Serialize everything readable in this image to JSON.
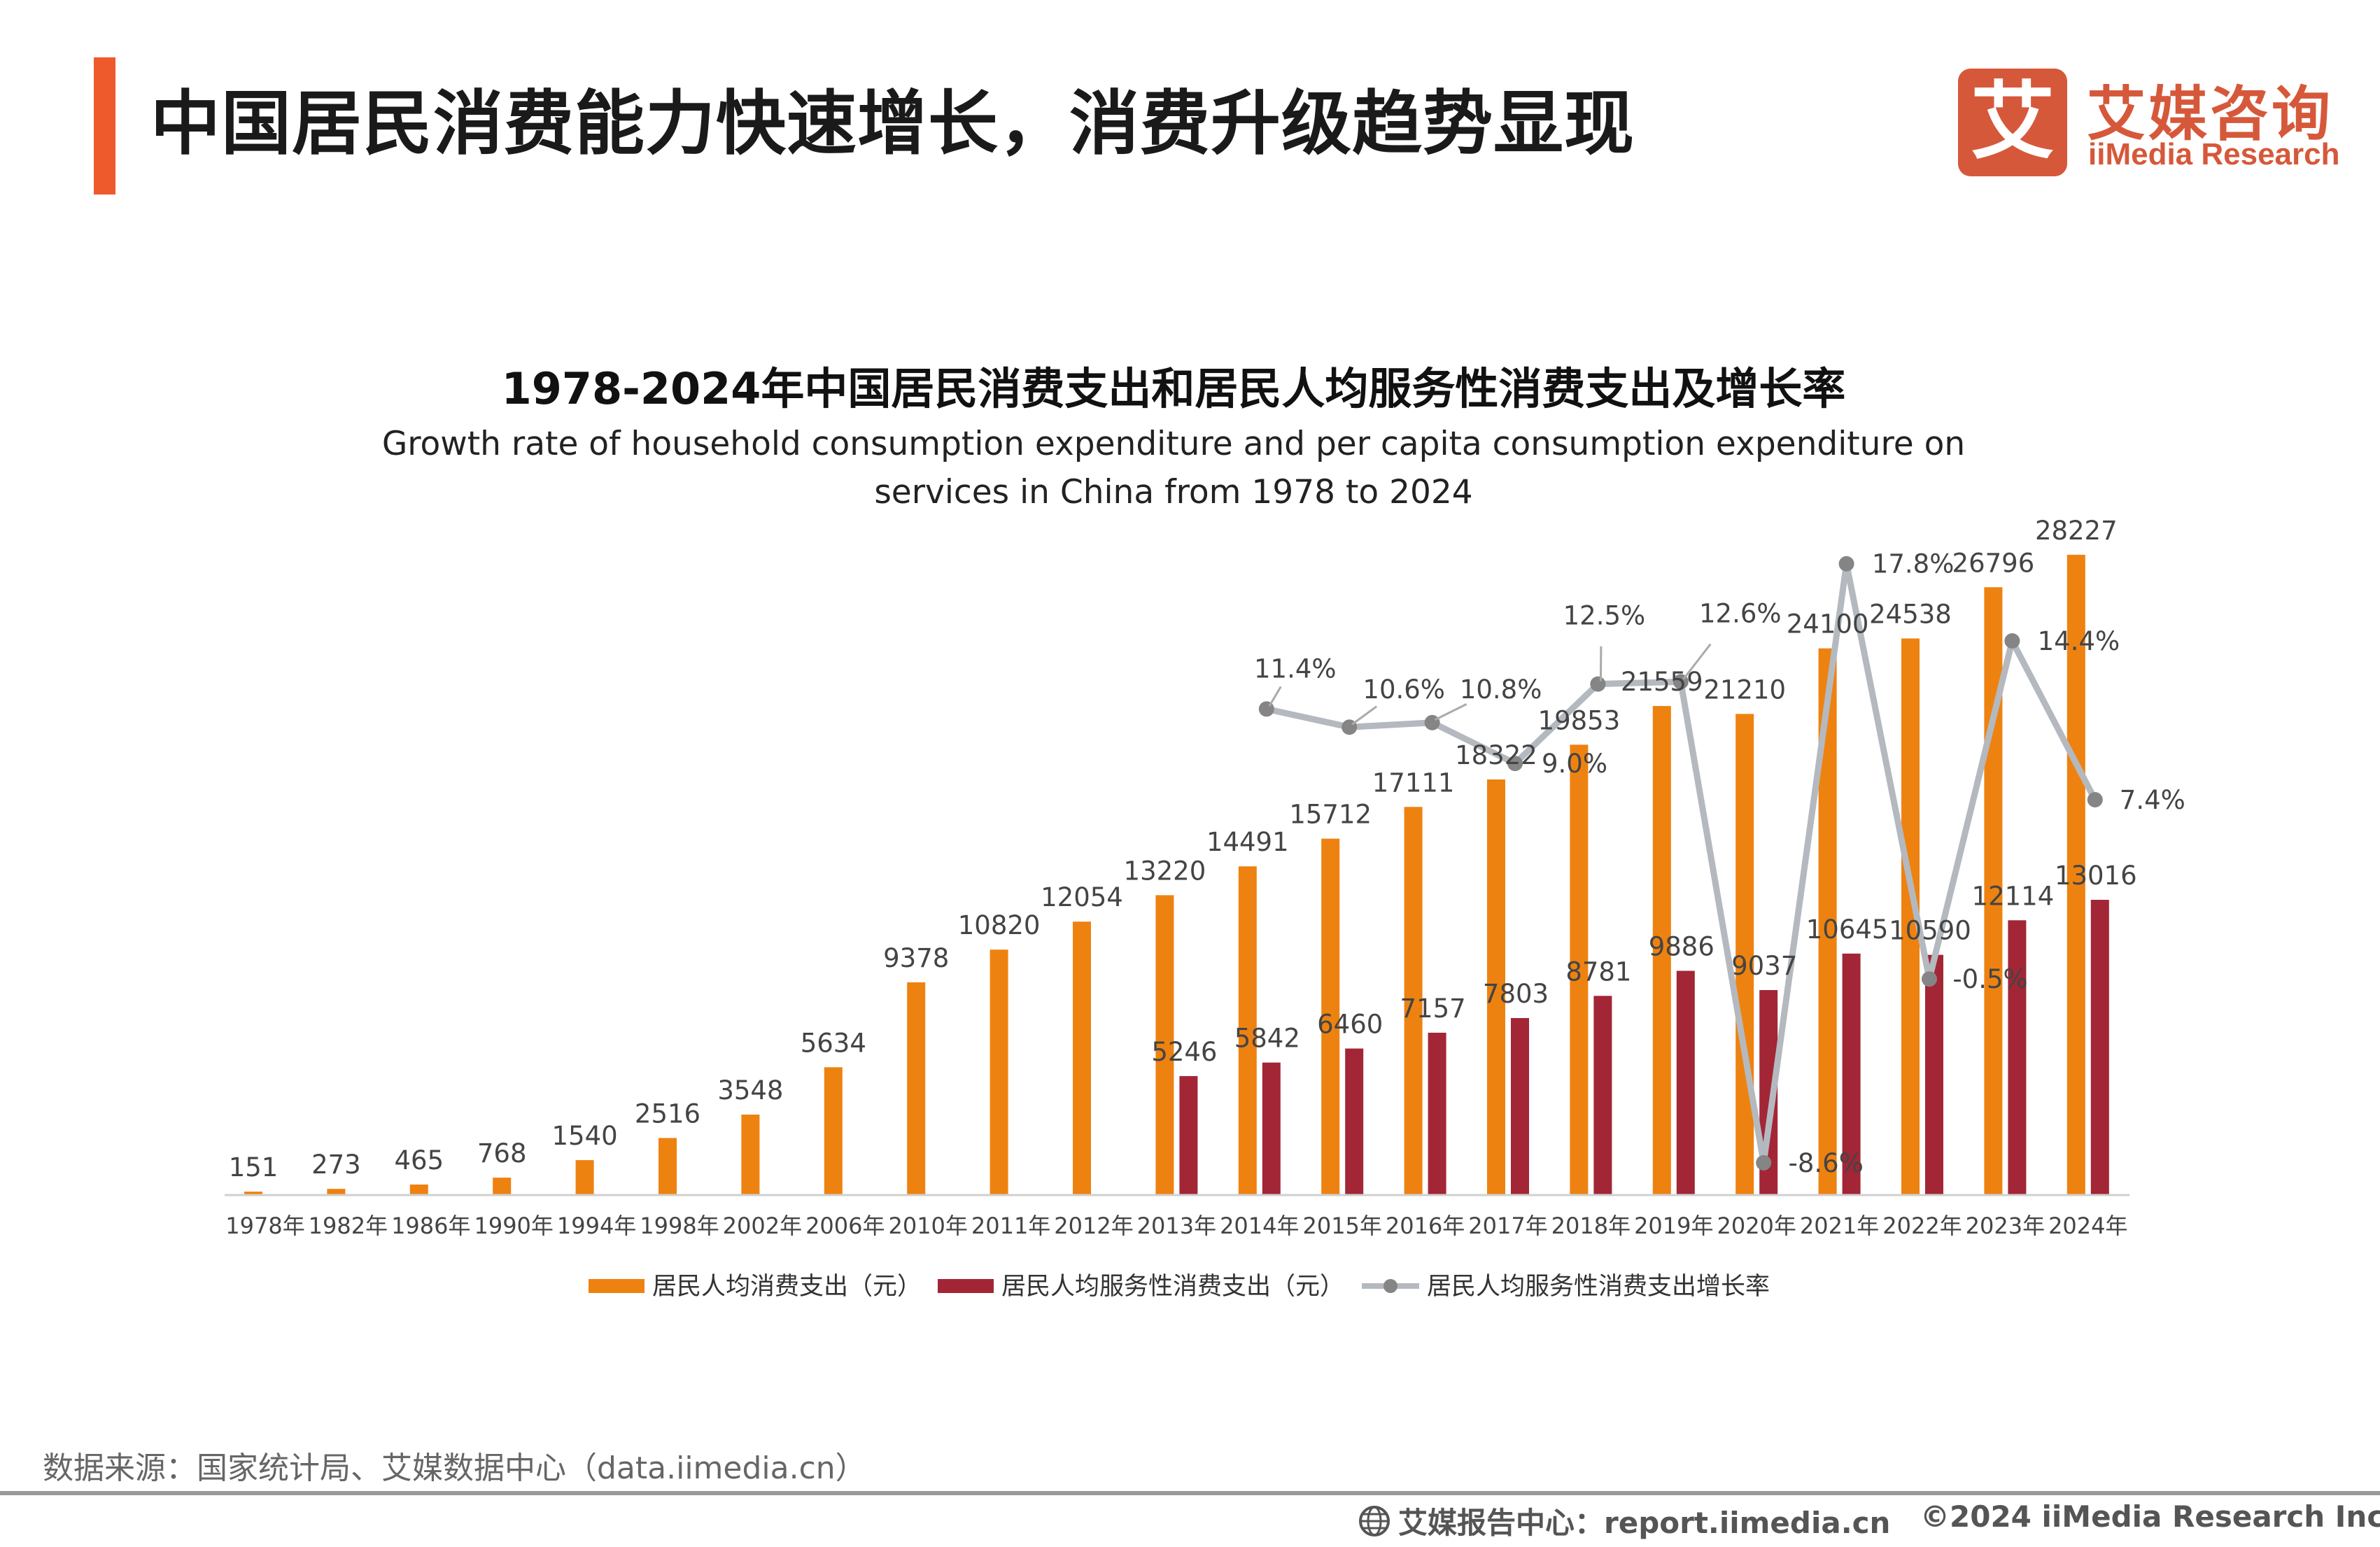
{
  "header": {
    "title": "中国居民消费能力快速增长，消费升级趋势显现",
    "accent_color": "#ef5a2c"
  },
  "logo": {
    "mark": "艾",
    "name_cn": "艾媒咨询",
    "name_en": "iiMedia Research",
    "color": "#d6583a"
  },
  "chart_data": {
    "type": "bar",
    "title": "1978-2024年中国居民消费支出和居民人均服务性消费支出及增长率",
    "subtitle_lines": [
      "Growth rate of household consumption expenditure and per capita consumption expenditure on",
      "services in China from 1978 to 2024"
    ],
    "categories": [
      "1978年",
      "1982年",
      "1986年",
      "1990年",
      "1994年",
      "1998年",
      "2002年",
      "2006年",
      "2010年",
      "2011年",
      "2012年",
      "2013年",
      "2014年",
      "2015年",
      "2016年",
      "2017年",
      "2018年",
      "2019年",
      "2020年",
      "2021年",
      "2022年",
      "2023年",
      "2024年"
    ],
    "series": [
      {
        "name": "居民人均消费支出（元）",
        "type": "bar",
        "color": "#ee8210",
        "values": [
          151,
          273,
          465,
          768,
          1540,
          2516,
          3548,
          5634,
          9378,
          10820,
          12054,
          13220,
          14491,
          15712,
          17111,
          18322,
          19853,
          21559,
          21210,
          24100,
          24538,
          26796,
          28227
        ]
      },
      {
        "name": "居民人均服务性消费支出（元）",
        "type": "bar",
        "color": "#a22636",
        "values": [
          null,
          null,
          null,
          null,
          null,
          null,
          null,
          null,
          null,
          null,
          null,
          5246,
          5842,
          6460,
          7157,
          7803,
          8781,
          9886,
          9037,
          10645,
          10590,
          12114,
          13016
        ]
      },
      {
        "name": "居民人均服务性消费支出增长率",
        "type": "line",
        "color": "#b4b9bf",
        "marker_color": "#858585",
        "unit": "%",
        "values": [
          null,
          null,
          null,
          null,
          null,
          null,
          null,
          null,
          null,
          null,
          null,
          null,
          11.4,
          10.6,
          10.8,
          9.0,
          12.5,
          12.6,
          -8.6,
          17.8,
          -0.5,
          14.4,
          7.4
        ]
      }
    ],
    "legend_position": "bottom",
    "grid": false,
    "y_axis_visible": false
  },
  "footer": {
    "source": "数据来源：国家统计局、艾媒数据中心（data.iimedia.cn）",
    "report_center": "艾媒报告中心：report.iimedia.cn",
    "copyright": "©2024  iiMedia Research  Inc"
  }
}
